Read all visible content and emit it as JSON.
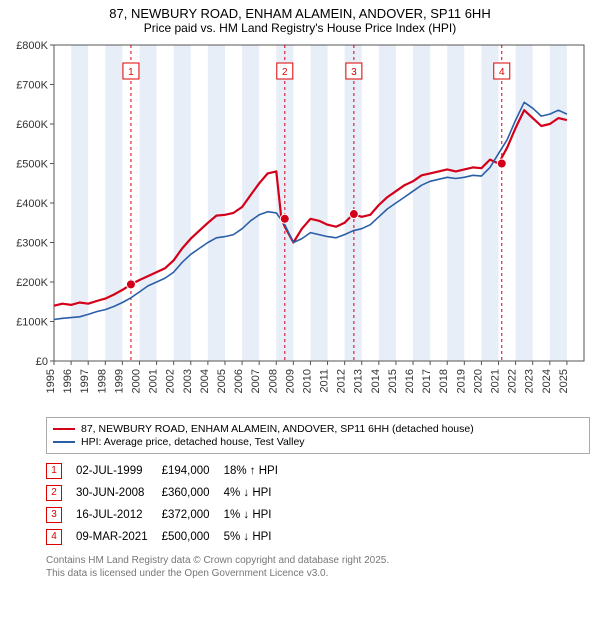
{
  "title": "87, NEWBURY ROAD, ENHAM ALAMEIN, ANDOVER, SP11 6HH",
  "subtitle": "Price paid vs. HM Land Registry's House Price Index (HPI)",
  "chart": {
    "type": "line",
    "x_range": [
      1995,
      2026
    ],
    "y_range": [
      0,
      800000
    ],
    "y_tick_step": 100000,
    "y_tick_labels": [
      "£0",
      "£100K",
      "£200K",
      "£300K",
      "£400K",
      "£500K",
      "£600K",
      "£700K",
      "£800K"
    ],
    "x_ticks": [
      1995,
      1996,
      1997,
      1998,
      1999,
      2000,
      2001,
      2002,
      2003,
      2004,
      2005,
      2006,
      2007,
      2008,
      2009,
      2010,
      2011,
      2012,
      2013,
      2014,
      2015,
      2016,
      2017,
      2018,
      2019,
      2020,
      2021,
      2022,
      2023,
      2024,
      2025
    ],
    "background_color": "#ffffff",
    "band_color": "#e8eef7",
    "axis_color": "#555555",
    "grid_color": "#e0e0e0",
    "series": [
      {
        "name": "price_paid",
        "color": "#d4001a",
        "width": 2.2,
        "points": [
          [
            1995.0,
            140000
          ],
          [
            1995.5,
            145000
          ],
          [
            1996.0,
            142000
          ],
          [
            1996.5,
            148000
          ],
          [
            1997.0,
            145000
          ],
          [
            1997.5,
            152000
          ],
          [
            1998.0,
            158000
          ],
          [
            1998.5,
            168000
          ],
          [
            1999.0,
            180000
          ],
          [
            1999.5,
            194000
          ],
          [
            2000.0,
            205000
          ],
          [
            2000.5,
            215000
          ],
          [
            2001.0,
            225000
          ],
          [
            2001.5,
            235000
          ],
          [
            2002.0,
            255000
          ],
          [
            2002.5,
            285000
          ],
          [
            2003.0,
            310000
          ],
          [
            2003.5,
            330000
          ],
          [
            2004.0,
            350000
          ],
          [
            2004.5,
            368000
          ],
          [
            2005.0,
            370000
          ],
          [
            2005.5,
            375000
          ],
          [
            2006.0,
            390000
          ],
          [
            2006.5,
            420000
          ],
          [
            2007.0,
            450000
          ],
          [
            2007.5,
            475000
          ],
          [
            2008.0,
            480000
          ],
          [
            2008.3,
            360000
          ],
          [
            2008.5,
            340000
          ],
          [
            2009.0,
            300000
          ],
          [
            2009.5,
            335000
          ],
          [
            2010.0,
            360000
          ],
          [
            2010.5,
            355000
          ],
          [
            2011.0,
            345000
          ],
          [
            2011.5,
            340000
          ],
          [
            2012.0,
            350000
          ],
          [
            2012.5,
            372000
          ],
          [
            2013.0,
            365000
          ],
          [
            2013.5,
            370000
          ],
          [
            2014.0,
            395000
          ],
          [
            2014.5,
            415000
          ],
          [
            2015.0,
            430000
          ],
          [
            2015.5,
            445000
          ],
          [
            2016.0,
            455000
          ],
          [
            2016.5,
            470000
          ],
          [
            2017.0,
            475000
          ],
          [
            2017.5,
            480000
          ],
          [
            2018.0,
            485000
          ],
          [
            2018.5,
            480000
          ],
          [
            2019.0,
            485000
          ],
          [
            2019.5,
            490000
          ],
          [
            2020.0,
            488000
          ],
          [
            2020.5,
            510000
          ],
          [
            2021.0,
            500000
          ],
          [
            2021.5,
            540000
          ],
          [
            2022.0,
            590000
          ],
          [
            2022.5,
            635000
          ],
          [
            2023.0,
            615000
          ],
          [
            2023.5,
            595000
          ],
          [
            2024.0,
            600000
          ],
          [
            2024.5,
            615000
          ],
          [
            2025.0,
            610000
          ]
        ]
      },
      {
        "name": "hpi",
        "color": "#2a5fa8",
        "width": 1.6,
        "points": [
          [
            1995.0,
            105000
          ],
          [
            1995.5,
            108000
          ],
          [
            1996.0,
            110000
          ],
          [
            1996.5,
            112000
          ],
          [
            1997.0,
            118000
          ],
          [
            1997.5,
            125000
          ],
          [
            1998.0,
            130000
          ],
          [
            1998.5,
            138000
          ],
          [
            1999.0,
            148000
          ],
          [
            1999.5,
            160000
          ],
          [
            2000.0,
            175000
          ],
          [
            2000.5,
            190000
          ],
          [
            2001.0,
            200000
          ],
          [
            2001.5,
            210000
          ],
          [
            2002.0,
            225000
          ],
          [
            2002.5,
            250000
          ],
          [
            2003.0,
            270000
          ],
          [
            2003.5,
            285000
          ],
          [
            2004.0,
            300000
          ],
          [
            2004.5,
            312000
          ],
          [
            2005.0,
            315000
          ],
          [
            2005.5,
            320000
          ],
          [
            2006.0,
            335000
          ],
          [
            2006.5,
            355000
          ],
          [
            2007.0,
            370000
          ],
          [
            2007.5,
            378000
          ],
          [
            2008.0,
            375000
          ],
          [
            2008.5,
            345000
          ],
          [
            2009.0,
            300000
          ],
          [
            2009.5,
            310000
          ],
          [
            2010.0,
            325000
          ],
          [
            2010.5,
            320000
          ],
          [
            2011.0,
            315000
          ],
          [
            2011.5,
            312000
          ],
          [
            2012.0,
            320000
          ],
          [
            2012.5,
            330000
          ],
          [
            2013.0,
            335000
          ],
          [
            2013.5,
            345000
          ],
          [
            2014.0,
            365000
          ],
          [
            2014.5,
            385000
          ],
          [
            2015.0,
            400000
          ],
          [
            2015.5,
            415000
          ],
          [
            2016.0,
            430000
          ],
          [
            2016.5,
            445000
          ],
          [
            2017.0,
            455000
          ],
          [
            2017.5,
            460000
          ],
          [
            2018.0,
            465000
          ],
          [
            2018.5,
            462000
          ],
          [
            2019.0,
            465000
          ],
          [
            2019.5,
            470000
          ],
          [
            2020.0,
            468000
          ],
          [
            2020.5,
            490000
          ],
          [
            2021.0,
            525000
          ],
          [
            2021.5,
            560000
          ],
          [
            2022.0,
            610000
          ],
          [
            2022.5,
            655000
          ],
          [
            2023.0,
            640000
          ],
          [
            2023.5,
            620000
          ],
          [
            2024.0,
            625000
          ],
          [
            2024.5,
            635000
          ],
          [
            2025.0,
            625000
          ]
        ]
      }
    ],
    "sale_markers": [
      {
        "n": "1",
        "x": 1999.5,
        "y": 194000
      },
      {
        "n": "2",
        "x": 2008.5,
        "y": 360000
      },
      {
        "n": "3",
        "x": 2012.54,
        "y": 372000
      },
      {
        "n": "4",
        "x": 2021.19,
        "y": 500000
      }
    ]
  },
  "legend": {
    "items": [
      {
        "color": "#d4001a",
        "label": "87, NEWBURY ROAD, ENHAM ALAMEIN, ANDOVER, SP11 6HH (detached house)"
      },
      {
        "color": "#2a5fa8",
        "label": "HPI: Average price, detached house, Test Valley"
      }
    ]
  },
  "sales": [
    {
      "n": "1",
      "date": "02-JUL-1999",
      "price": "£194,000",
      "pct": "18%",
      "dir": "up",
      "vs": "HPI"
    },
    {
      "n": "2",
      "date": "30-JUN-2008",
      "price": "£360,000",
      "pct": "4%",
      "dir": "down",
      "vs": "HPI"
    },
    {
      "n": "3",
      "date": "16-JUL-2012",
      "price": "£372,000",
      "pct": "1%",
      "dir": "down",
      "vs": "HPI"
    },
    {
      "n": "4",
      "date": "09-MAR-2021",
      "price": "£500,000",
      "pct": "5%",
      "dir": "down",
      "vs": "HPI"
    }
  ],
  "footnote": {
    "l1": "Contains HM Land Registry data © Crown copyright and database right 2025.",
    "l2": "This data is licensed under the Open Government Licence v3.0."
  }
}
